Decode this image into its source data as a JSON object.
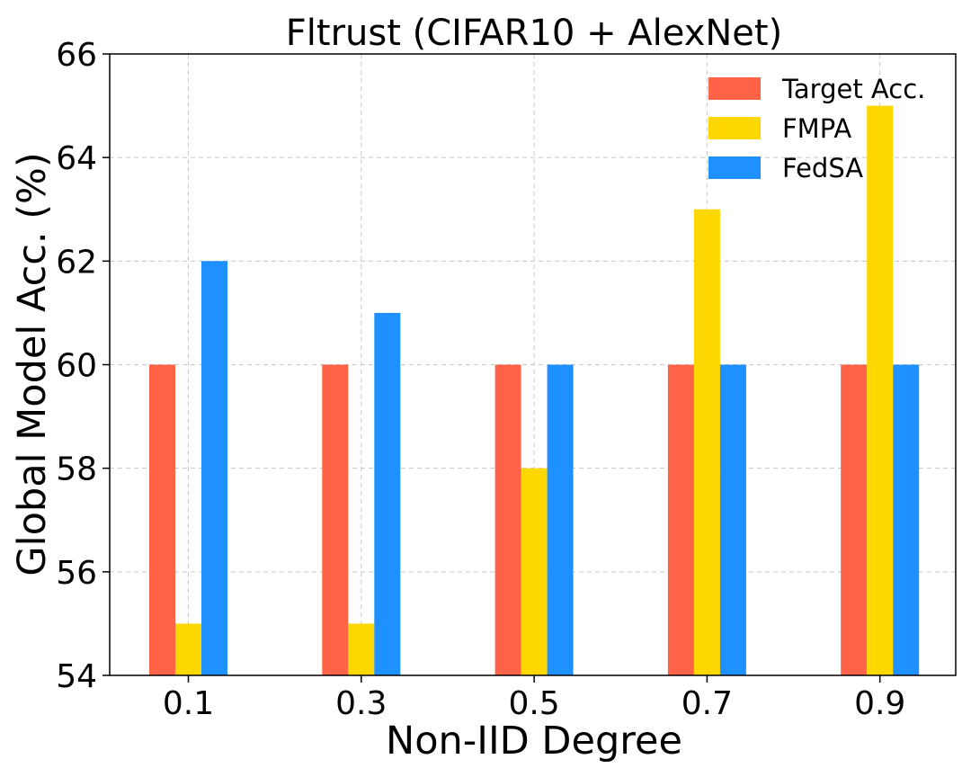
{
  "chart_data": {
    "type": "bar",
    "title": "Fltrust (CIFAR10 + AlexNet)",
    "xlabel": "Non-IID Degree",
    "ylabel": "Global Model Acc. (%)",
    "categories": [
      "0.1",
      "0.3",
      "0.5",
      "0.7",
      "0.9"
    ],
    "ylim": [
      54,
      66
    ],
    "yticks": [
      54,
      56,
      58,
      60,
      62,
      64,
      66
    ],
    "grid": true,
    "legend_position": "top-right",
    "series": [
      {
        "name": "Target Acc.",
        "color": "#FF6347",
        "values": [
          60,
          60,
          60,
          60,
          60
        ]
      },
      {
        "name": "FMPA",
        "color": "#FFD700",
        "values": [
          55,
          55,
          58,
          63,
          65
        ]
      },
      {
        "name": "FedSA",
        "color": "#1E90FF",
        "values": [
          62,
          61,
          60,
          60,
          60
        ]
      }
    ]
  }
}
